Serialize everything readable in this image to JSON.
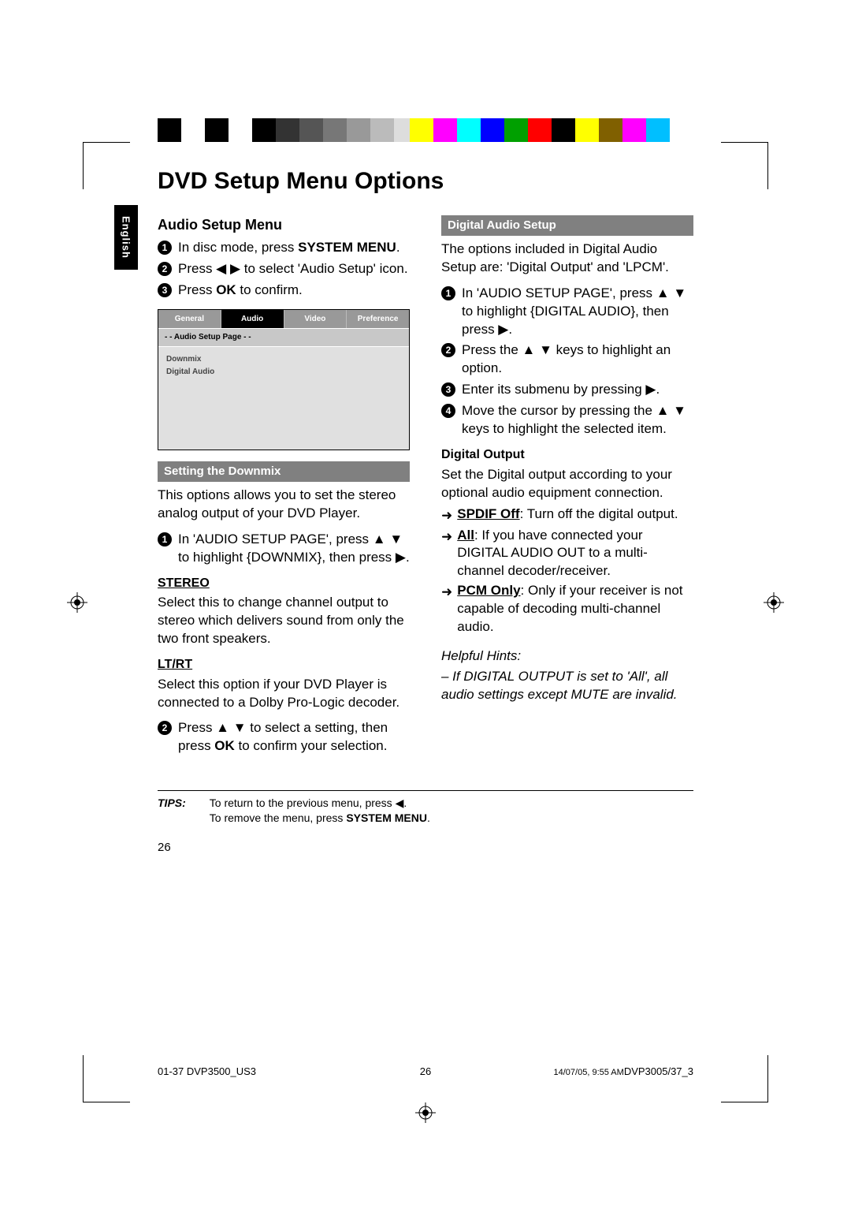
{
  "crop_marks": true,
  "colorbar_left_colors": [
    "#000000",
    "#ffffff",
    "#000000",
    "#ffffff",
    "#000000",
    "#333333",
    "#555555",
    "#777777",
    "#999999",
    "#bbbbbb",
    "#dddddd",
    "#ffffff"
  ],
  "colorbar_right_colors": [
    "#ffff00",
    "#ff00ff",
    "#00ffff",
    "#0000ff",
    "#00a000",
    "#ff0000",
    "#000000",
    "#ffff00",
    "#806000",
    "#ff00ff",
    "#00bfff",
    "#ffffff"
  ],
  "title": "DVD Setup Menu Options",
  "lang_tab": "English",
  "left": {
    "h2": "Audio Setup Menu",
    "step1_a": "In disc mode, press ",
    "step1_b": "SYSTEM MENU",
    "step1_c": ".",
    "step2": "Press ◀ ▶ to select 'Audio Setup' icon.",
    "step3_a": "Press ",
    "step3_b": "OK",
    "step3_c": " to confirm.",
    "menu": {
      "tabs": [
        "General",
        "Audio",
        "Video",
        "Preference"
      ],
      "active_idx": 1,
      "title": "- -  Audio Setup Page  - -",
      "items": [
        "Downmix",
        "Digital Audio"
      ]
    },
    "downmix_bar": "Setting the Downmix",
    "downmix_p": "This options allows you to set the stereo analog output of your DVD Player.",
    "downmix_step1": "In 'AUDIO SETUP PAGE', press ▲ ▼ to highlight {DOWNMIX}, then press ▶.",
    "stereo_h": "STEREO",
    "stereo_p": "Select this to change channel output to stereo which delivers sound from only the two front speakers.",
    "ltrt_h": "LT/RT",
    "ltrt_p": "Select this option if your DVD Player is connected to a Dolby Pro-Logic decoder.",
    "downmix_step2_a": "Press ▲ ▼ to select a setting, then press ",
    "downmix_step2_b": "OK",
    "downmix_step2_c": " to confirm your selection."
  },
  "right": {
    "bar": "Digital Audio Setup",
    "intro": "The options included in Digital Audio Setup are: 'Digital Output' and 'LPCM'.",
    "step1": "In 'AUDIO SETUP PAGE', press ▲ ▼ to highlight {DIGITAL AUDIO}, then press ▶.",
    "step2": "Press the ▲ ▼ keys to highlight an option.",
    "step3": "Enter its submenu by pressing ▶.",
    "step4": "Move the cursor by pressing the ▲ ▼ keys to highlight the selected item.",
    "digout_h": "Digital Output",
    "digout_p": "Set the Digital output according to your optional audio equipment connection.",
    "opt1_b": "SPDIF Off",
    "opt1_t": ": Turn off the digital output.",
    "opt2_b": "All",
    "opt2_t": ": If you have connected your DIGITAL AUDIO OUT to a multi-channel decoder/receiver.",
    "opt3_b": "PCM Only",
    "opt3_t": ": Only if your receiver is not capable of decoding multi-channel audio.",
    "hints_h": "Helpful Hints:",
    "hints_p": "–   If DIGITAL OUTPUT is set to 'All', all audio settings except MUTE are invalid."
  },
  "tips": {
    "label": "TIPS:",
    "line1": "To return to the previous menu, press ◀.",
    "line2_a": "To remove the menu, press ",
    "line2_b": "SYSTEM MENU",
    "line2_c": "."
  },
  "pagenum": "26",
  "footer": {
    "left": "01-37 DVP3500_US3",
    "mid": "26",
    "right_a": "14/07/05, 9:55 AM",
    "right_b": "DVP3005/37_3"
  }
}
